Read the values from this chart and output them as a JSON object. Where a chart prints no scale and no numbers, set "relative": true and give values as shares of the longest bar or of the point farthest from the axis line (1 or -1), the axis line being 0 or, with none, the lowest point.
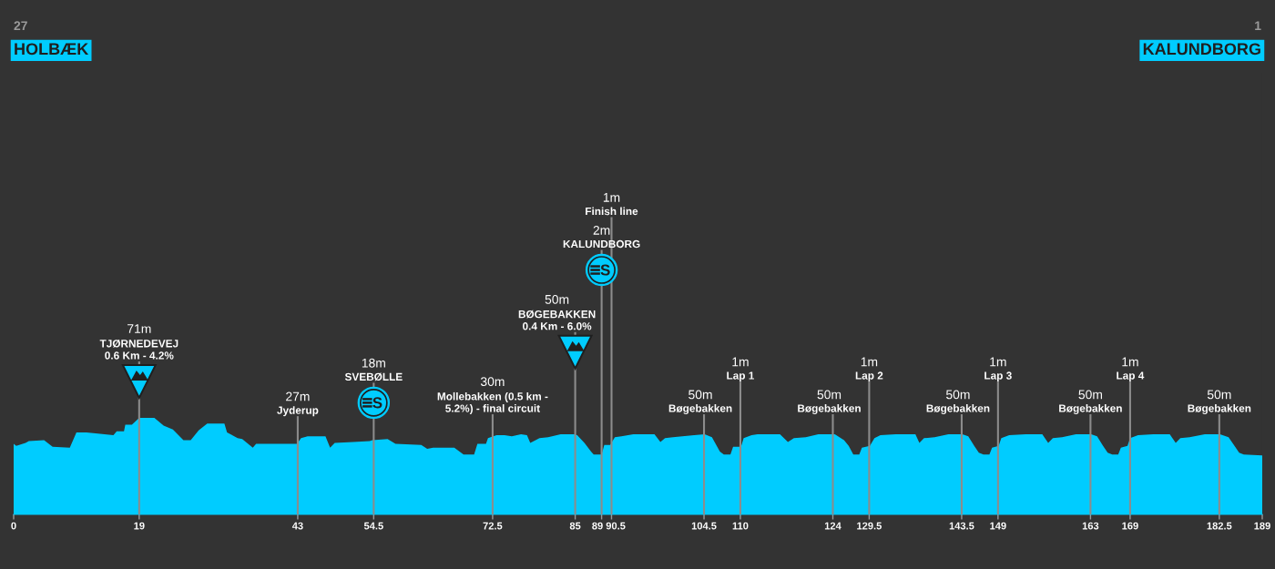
{
  "chart_data": {
    "type": "area",
    "relative": true,
    "x": [
      0,
      0.4,
      1.8,
      2.3,
      4.6,
      5.9,
      8.5,
      9.5,
      11.0,
      12.4,
      15.1,
      15.6,
      16.7,
      16.9,
      17.9,
      19.0,
      21.3,
      22.7,
      24.1,
      25.7,
      26.8,
      28.0,
      29.3,
      31.9,
      32.3,
      33.9,
      34.6,
      36.2,
      36.7,
      40.8,
      42.9,
      43.5,
      44.5,
      47.2,
      47.9,
      48.6,
      51.4,
      53.9,
      54.3,
      56.6,
      57.8,
      61.7,
      62.6,
      63.5,
      66.7,
      68.1,
      69.7,
      70.2,
      71.5,
      71.8,
      73.1,
      74.3,
      75.4,
      76.8,
      77.7,
      78.2,
      79.6,
      80.9,
      82.8,
      84.8,
      85.3,
      86.4,
      87.4,
      87.8,
      89.0,
      89.4,
      90.3,
      91.0,
      92.0,
      93.8,
      95.4,
      97.0,
      97.9,
      98.6,
      99.8,
      103.0,
      104.6,
      105.7,
      106.9,
      107.5,
      108.5,
      108.9,
      110.1,
      110.5,
      111.7,
      112.6,
      115.1,
      116.0,
      117.2,
      118.1,
      119.9,
      121.8,
      124.3,
      125.7,
      126.4,
      127.1,
      128.0,
      128.4,
      129.6,
      130.3,
      131.2,
      133.5,
      136.5,
      137.1,
      137.8,
      139.4,
      141.5,
      143.6,
      144.5,
      145.4,
      146.1,
      146.8,
      147.7,
      148.1,
      149.1,
      149.5,
      150.7,
      153.2,
      155.7,
      156.6,
      157.3,
      158.7,
      160.8,
      163.1,
      164.0,
      164.9,
      165.6,
      166.3,
      167.2,
      167.6,
      168.6,
      169.0,
      170.2,
      172.5,
      175.0,
      175.9,
      176.6,
      178.0,
      180.3,
      182.6,
      183.9,
      184.8,
      185.5,
      186.2,
      189
    ],
    "series": [
      {
        "color": "#00ccff",
        "values": [
          0.73,
          0.71,
          0.74,
          0.76,
          0.77,
          0.7,
          0.69,
          0.85,
          0.85,
          0.84,
          0.82,
          0.86,
          0.86,
          0.93,
          0.93,
          1.0,
          1.0,
          0.92,
          0.88,
          0.77,
          0.77,
          0.87,
          0.94,
          0.94,
          0.85,
          0.79,
          0.78,
          0.69,
          0.73,
          0.73,
          0.73,
          0.79,
          0.81,
          0.81,
          0.69,
          0.74,
          0.75,
          0.76,
          0.77,
          0.78,
          0.73,
          0.72,
          0.68,
          0.69,
          0.69,
          0.62,
          0.62,
          0.73,
          0.73,
          0.79,
          0.82,
          0.82,
          0.81,
          0.83,
          0.82,
          0.74,
          0.79,
          0.8,
          0.83,
          0.83,
          0.82,
          0.74,
          0.65,
          0.62,
          0.62,
          0.72,
          0.72,
          0.8,
          0.81,
          0.83,
          0.83,
          0.83,
          0.75,
          0.79,
          0.8,
          0.82,
          0.83,
          0.8,
          0.65,
          0.62,
          0.62,
          0.7,
          0.7,
          0.79,
          0.82,
          0.83,
          0.83,
          0.83,
          0.75,
          0.79,
          0.8,
          0.83,
          0.83,
          0.77,
          0.71,
          0.62,
          0.62,
          0.69,
          0.71,
          0.79,
          0.82,
          0.83,
          0.83,
          0.74,
          0.79,
          0.8,
          0.83,
          0.83,
          0.81,
          0.71,
          0.64,
          0.62,
          0.62,
          0.69,
          0.71,
          0.79,
          0.82,
          0.83,
          0.83,
          0.74,
          0.79,
          0.8,
          0.83,
          0.83,
          0.81,
          0.71,
          0.64,
          0.62,
          0.62,
          0.69,
          0.71,
          0.79,
          0.82,
          0.83,
          0.83,
          0.74,
          0.79,
          0.8,
          0.83,
          0.83,
          0.8,
          0.71,
          0.64,
          0.62,
          0.61
        ]
      }
    ],
    "xlim": [
      0,
      189
    ],
    "xticks": [
      0,
      19,
      43,
      54.5,
      72.5,
      85,
      89,
      90.5,
      104.5,
      110,
      124,
      129.5,
      143.5,
      149,
      163,
      169,
      182.5,
      189
    ],
    "ref_lines": [
      {
        "axis": "x",
        "value": 19,
        "label": "71m\nTJØRNEDEVEJ\n0.6 Km - 4.2%",
        "color": "#8c8c8c"
      },
      {
        "axis": "x",
        "value": 43,
        "label": "27m\nJyderup",
        "color": "#8c8c8c"
      },
      {
        "axis": "x",
        "value": 54.5,
        "label": "18m\nSVEBØLLE",
        "color": "#8c8c8c"
      },
      {
        "axis": "x",
        "value": 72.5,
        "label": "30m\nMollebakken (0.5 km -\n5.2%) - final circuit",
        "color": "#8c8c8c"
      },
      {
        "axis": "x",
        "value": 85,
        "label": "50m\nBØGEBAKKEN\n0.4 Km - 6.0%",
        "color": "#8c8c8c"
      },
      {
        "axis": "x",
        "value": 89,
        "label": "2m\nKALUNDBORG",
        "color": "#8c8c8c"
      },
      {
        "axis": "x",
        "value": 90.5,
        "label": "1m\nFinish line",
        "color": "#8c8c8c"
      },
      {
        "axis": "x",
        "value": 104.5,
        "label": "50m\nBøgebakken",
        "color": "#8c8c8c"
      },
      {
        "axis": "x",
        "value": 110,
        "label": "1m\nLap 1",
        "color": "#8c8c8c"
      },
      {
        "axis": "x",
        "value": 124,
        "label": "50m\nBøgebakken",
        "color": "#8c8c8c"
      },
      {
        "axis": "x",
        "value": 129.5,
        "label": "1m\nLap 2",
        "color": "#8c8c8c"
      },
      {
        "axis": "x",
        "value": 143.5,
        "label": "50m\nBøgebakken",
        "color": "#8c8c8c"
      },
      {
        "axis": "x",
        "value": 149,
        "label": "1m\nLap 3",
        "color": "#8c8c8c"
      },
      {
        "axis": "x",
        "value": 163,
        "label": "50m\nBøgebakken",
        "color": "#8c8c8c"
      },
      {
        "axis": "x",
        "value": 169,
        "label": "1m\nLap 4",
        "color": "#8c8c8c"
      },
      {
        "axis": "x",
        "value": 182.5,
        "label": "50m\nBøgebakken",
        "color": "#8c8c8c"
      }
    ],
    "annotations": [
      "27",
      "HOLBÆK",
      "1",
      "KALUNDBORG"
    ]
  }
}
